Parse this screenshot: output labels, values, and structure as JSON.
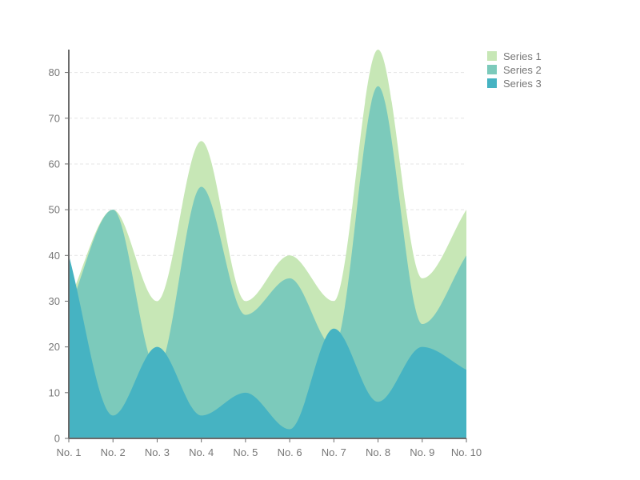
{
  "chart_data": {
    "type": "area",
    "categories": [
      "No. 1",
      "No. 2",
      "No. 3",
      "No. 4",
      "No. 5",
      "No. 6",
      "No. 7",
      "No. 8",
      "No. 9",
      "No. 10"
    ],
    "series": [
      {
        "name": "Series 1",
        "values": [
          30,
          50,
          30,
          65,
          30,
          40,
          30,
          85,
          35,
          50
        ],
        "color": "#c7e7b6"
      },
      {
        "name": "Series 2",
        "values": [
          28,
          50,
          15,
          55,
          27,
          35,
          20,
          77,
          25,
          40
        ],
        "color": "#7ccabb"
      },
      {
        "name": "Series 3",
        "values": [
          40,
          5,
          20,
          5,
          10,
          2,
          24,
          8,
          20,
          15
        ],
        "color": "#46b3c2"
      }
    ],
    "yticks": [
      0,
      10,
      20,
      30,
      40,
      50,
      60,
      70,
      80
    ],
    "ylim": [
      0,
      85
    ],
    "grid": "horizontal-dashed",
    "legend_position": "top-right",
    "title": "",
    "xlabel": "",
    "ylabel": ""
  }
}
